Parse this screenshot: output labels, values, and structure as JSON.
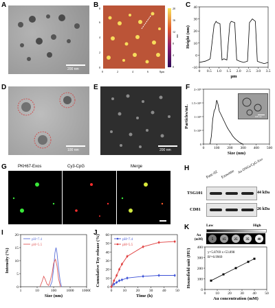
{
  "panels": {
    "A": {
      "label": "A",
      "scale_bar": "200 nm"
    },
    "B": {
      "label": "B",
      "x_ticks": [
        "0",
        "2",
        "4",
        "6",
        "8μm"
      ],
      "y_ticks": [
        "0",
        "2",
        "4",
        "6",
        "8"
      ],
      "colorbar_ticks": [
        "20",
        "18",
        "16",
        "14",
        "12",
        "10",
        "8",
        "6",
        "4",
        "2",
        "0"
      ],
      "unit": "nm"
    },
    "C": {
      "label": "C"
    },
    "D": {
      "label": "D",
      "scale_bar": "100 nm"
    },
    "E": {
      "label": "E",
      "scale_bar": "200 nm"
    },
    "F": {
      "label": "F",
      "inset_scale_bar": "100 nm"
    },
    "G": {
      "label": "G",
      "titles": [
        "PKH67-Exos",
        "Cy3-CpG",
        "Merge"
      ]
    },
    "H": {
      "label": "H",
      "lanes": [
        "Panc-02",
        "Exosome",
        "Au-DNGs/CpG-Exo"
      ],
      "rows": [
        {
          "name": "TSG101",
          "kda": "44 kDa"
        },
        {
          "name": "CD81",
          "kda": "26 kDa"
        }
      ]
    },
    "I": {
      "label": "I"
    },
    "J": {
      "label": "J"
    },
    "K": {
      "label": "K",
      "gradient": {
        "low": "Low",
        "high": "High"
      },
      "wells_label": "Au (mM)",
      "wells": [
        "5",
        "15",
        "25",
        "35",
        "40"
      ]
    }
  },
  "chart_data": [
    {
      "id": "C",
      "type": "line",
      "xlabel": "μm",
      "ylabel": "Height (nm)",
      "xlim": [
        0,
        3.5
      ],
      "ylim": [
        -10,
        40
      ],
      "x_ticks": [
        "0",
        "0.5",
        "1.0",
        "1.5",
        "2.0",
        "2.5",
        "3.0",
        "3.5"
      ],
      "y_ticks": [
        "-10",
        "0",
        "10",
        "20",
        "30",
        "40"
      ],
      "series": [
        {
          "x": [
            0,
            0.3,
            0.45,
            0.55,
            0.75,
            0.85,
            0.9,
            1.05,
            1.15,
            1.25,
            1.4,
            1.55,
            1.62,
            1.8,
            1.9,
            2.05,
            2.25,
            2.45,
            2.55,
            2.7,
            2.85,
            2.95,
            3.1,
            3.3,
            3.5
          ],
          "y": [
            -6,
            -5,
            -4,
            -3,
            25,
            28,
            27,
            26,
            -4,
            -3,
            -4,
            26,
            28,
            27,
            -4,
            -5,
            -6,
            -5,
            27,
            30,
            28,
            -5,
            -6,
            -7,
            -6
          ]
        }
      ]
    },
    {
      "id": "F",
      "type": "line",
      "xlabel": "Size (nm)",
      "ylabel": "Particles/mL",
      "xlim": [
        0,
        500
      ],
      "ylim": [
        0,
        2000000000
      ],
      "x_ticks": [
        "0",
        "100",
        "200",
        "300",
        "400",
        "500"
      ],
      "y_ticks": [
        "0",
        "5×10⁸",
        "1×10⁹",
        "1.5×10⁹",
        "2×10⁹"
      ],
      "series": [
        {
          "x": [
            50,
            60,
            70,
            80,
            90,
            100,
            110,
            120,
            130,
            140,
            150,
            160,
            170,
            180,
            190,
            200,
            210,
            220,
            230,
            240,
            250,
            260,
            270,
            280,
            290,
            300
          ],
          "y": [
            0,
            300000000,
            900000000,
            1200000000,
            1300000000,
            1600000000,
            1450000000,
            1200000000,
            1100000000,
            1000000000,
            900000000,
            800000000,
            700000000,
            600000000,
            520000000,
            450000000,
            380000000,
            300000000,
            240000000,
            190000000,
            150000000,
            110000000,
            70000000,
            40000000,
            15000000,
            0
          ]
        }
      ]
    },
    {
      "id": "I",
      "type": "line",
      "xlabel": "Size (nm)",
      "ylabel": "Intensity (%)",
      "xscale": "log",
      "xlim": [
        1,
        10000
      ],
      "ylim": [
        0,
        20
      ],
      "x_ticks": [
        "1",
        "10",
        "100",
        "1000",
        "10000"
      ],
      "y_ticks": [
        "0",
        "5",
        "10",
        "15",
        "20"
      ],
      "legend": "top-left",
      "series": [
        {
          "name": "pH=7.4",
          "color": "#5a6fd8",
          "x": [
            60,
            80,
            100,
            120,
            140,
            160,
            200,
            250,
            300
          ],
          "y": [
            0,
            2,
            7,
            13,
            15,
            13,
            7,
            2,
            0
          ]
        },
        {
          "name": "pH=5.5",
          "color": "#e05a5a",
          "x": [
            15,
            20,
            25,
            30,
            40,
            50,
            60,
            80,
            100,
            130,
            160,
            200,
            260
          ],
          "y": [
            0,
            2,
            4,
            3,
            1,
            0.5,
            2,
            5,
            9,
            10.5,
            8,
            3,
            0
          ]
        }
      ]
    },
    {
      "id": "J",
      "type": "line",
      "xlabel": "Time (h)",
      "ylabel": "Cumulative Toy release (%)",
      "xlim": [
        0,
        50
      ],
      "ylim": [
        0,
        60
      ],
      "x_ticks": [
        "0",
        "10",
        "20",
        "30",
        "40",
        "50"
      ],
      "y_ticks": [
        "0",
        "10",
        "20",
        "30",
        "40",
        "50",
        "60"
      ],
      "legend": "top-left",
      "series": [
        {
          "name": "pH=7.4",
          "color": "#3b50d6",
          "x": [
            0,
            2,
            4,
            6,
            8,
            12,
            24,
            36,
            48
          ],
          "y": [
            0,
            3,
            5,
            7,
            8,
            10,
            12,
            13,
            13
          ]
        },
        {
          "name": "pH=5.5",
          "color": "#e03c3c",
          "x": [
            0,
            2,
            4,
            6,
            8,
            12,
            24,
            36,
            48
          ],
          "y": [
            0,
            7,
            13,
            20,
            26,
            35,
            46,
            51,
            52
          ]
        }
      ]
    },
    {
      "id": "K",
      "type": "scatter",
      "xlabel": "Au concentration (mM)",
      "ylabel": "Hounsfield unit (HU)",
      "xlim": [
        0,
        50
      ],
      "ylim": [
        0,
        400
      ],
      "x_ticks": [
        "0",
        "10",
        "20",
        "30",
        "40",
        "50"
      ],
      "y_ticks": [
        "0",
        "100",
        "200",
        "300",
        "400"
      ],
      "annotation": [
        "y=5.8769 x+53.898",
        "R²=0.9969"
      ],
      "series": [
        {
          "x": [
            5,
            15,
            25,
            35,
            40
          ],
          "y": [
            83,
            142,
            201,
            260,
            289
          ]
        }
      ]
    }
  ]
}
